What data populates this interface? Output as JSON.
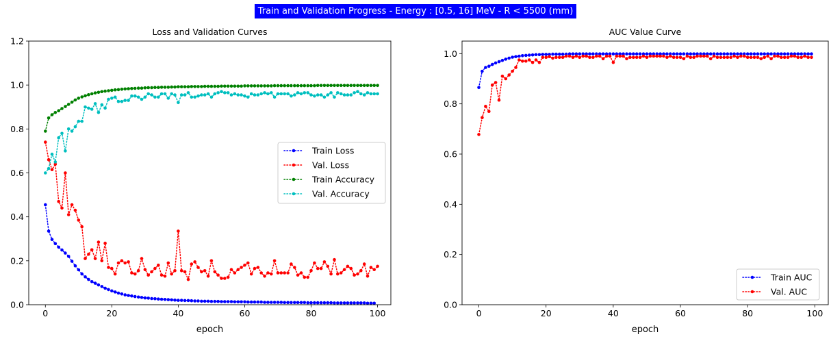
{
  "suptitle": "Train and Validation Progress - Energy : [0.5, 16] MeV - R < 5500 (mm)",
  "colors": {
    "train_loss": "#0000ff",
    "val_loss": "#ff0000",
    "train_acc": "#008000",
    "val_acc": "#00bfbf",
    "suptitle_bg": "#0000ff"
  },
  "chart_data": [
    {
      "type": "line",
      "title": "Loss and Validation Curves",
      "xlabel": "epoch",
      "ylabel": "",
      "xlim": [
        -5,
        104
      ],
      "ylim": [
        0.0,
        1.2
      ],
      "xticks": [
        0,
        20,
        40,
        60,
        80,
        100
      ],
      "yticks": [
        0.0,
        0.2,
        0.4,
        0.6,
        0.8,
        1.0,
        1.2
      ],
      "grid": false,
      "legend": "center-right",
      "x_start": 0,
      "series": [
        {
          "name": "Train Loss",
          "color": "#0000ff",
          "values": [
            0.455,
            0.335,
            0.297,
            0.278,
            0.262,
            0.249,
            0.235,
            0.22,
            0.198,
            0.177,
            0.159,
            0.14,
            0.127,
            0.115,
            0.105,
            0.098,
            0.09,
            0.083,
            0.075,
            0.069,
            0.063,
            0.058,
            0.053,
            0.049,
            0.045,
            0.042,
            0.04,
            0.037,
            0.035,
            0.033,
            0.031,
            0.03,
            0.028,
            0.027,
            0.026,
            0.025,
            0.024,
            0.023,
            0.022,
            0.021,
            0.02,
            0.02,
            0.019,
            0.019,
            0.018,
            0.017,
            0.017,
            0.016,
            0.016,
            0.016,
            0.015,
            0.015,
            0.015,
            0.014,
            0.014,
            0.014,
            0.014,
            0.013,
            0.013,
            0.013,
            0.013,
            0.012,
            0.012,
            0.012,
            0.012,
            0.012,
            0.011,
            0.011,
            0.011,
            0.011,
            0.011,
            0.011,
            0.01,
            0.01,
            0.01,
            0.01,
            0.01,
            0.01,
            0.01,
            0.009,
            0.009,
            0.009,
            0.009,
            0.009,
            0.009,
            0.009,
            0.009,
            0.008,
            0.008,
            0.008,
            0.008,
            0.008,
            0.008,
            0.008,
            0.008,
            0.008,
            0.008,
            0.007,
            0.007,
            0.007
          ]
        },
        {
          "name": "Val. Loss",
          "color": "#ff0000",
          "values": [
            0.74,
            0.66,
            0.615,
            0.64,
            0.47,
            0.44,
            0.6,
            0.41,
            0.455,
            0.43,
            0.385,
            0.355,
            0.21,
            0.23,
            0.25,
            0.21,
            0.285,
            0.2,
            0.28,
            0.17,
            0.165,
            0.14,
            0.19,
            0.2,
            0.19,
            0.195,
            0.145,
            0.14,
            0.155,
            0.21,
            0.16,
            0.135,
            0.15,
            0.165,
            0.18,
            0.135,
            0.13,
            0.19,
            0.14,
            0.155,
            0.335,
            0.155,
            0.15,
            0.115,
            0.185,
            0.195,
            0.17,
            0.15,
            0.155,
            0.13,
            0.2,
            0.15,
            0.135,
            0.12,
            0.12,
            0.125,
            0.16,
            0.145,
            0.16,
            0.17,
            0.18,
            0.19,
            0.14,
            0.165,
            0.17,
            0.145,
            0.13,
            0.145,
            0.14,
            0.2,
            0.145,
            0.145,
            0.145,
            0.145,
            0.185,
            0.17,
            0.135,
            0.145,
            0.125,
            0.125,
            0.155,
            0.19,
            0.165,
            0.165,
            0.195,
            0.175,
            0.14,
            0.205,
            0.14,
            0.145,
            0.16,
            0.175,
            0.165,
            0.135,
            0.14,
            0.155,
            0.185,
            0.13,
            0.17,
            0.16,
            0.175
          ]
        },
        {
          "name": "Train Accuracy",
          "color": "#008000",
          "values": [
            0.79,
            0.85,
            0.865,
            0.875,
            0.883,
            0.893,
            0.902,
            0.912,
            0.922,
            0.932,
            0.94,
            0.946,
            0.951,
            0.956,
            0.96,
            0.964,
            0.967,
            0.97,
            0.972,
            0.974,
            0.976,
            0.978,
            0.979,
            0.981,
            0.982,
            0.983,
            0.984,
            0.985,
            0.986,
            0.986,
            0.987,
            0.988,
            0.988,
            0.989,
            0.989,
            0.99,
            0.99,
            0.99,
            0.991,
            0.991,
            0.992,
            0.992,
            0.992,
            0.992,
            0.993,
            0.993,
            0.993,
            0.993,
            0.994,
            0.994,
            0.994,
            0.994,
            0.994,
            0.995,
            0.995,
            0.995,
            0.995,
            0.995,
            0.995,
            0.995,
            0.996,
            0.996,
            0.996,
            0.996,
            0.996,
            0.996,
            0.996,
            0.996,
            0.996,
            0.997,
            0.997,
            0.997,
            0.997,
            0.997,
            0.997,
            0.997,
            0.997,
            0.997,
            0.997,
            0.997,
            0.997,
            0.997,
            0.998,
            0.998,
            0.998,
            0.998,
            0.998,
            0.998,
            0.998,
            0.998,
            0.998,
            0.998,
            0.998,
            0.998,
            0.998,
            0.998,
            0.998,
            0.998,
            0.998,
            0.998,
            0.998
          ]
        },
        {
          "name": "Val. Accuracy",
          "color": "#00bfbf",
          "values": [
            0.6,
            0.62,
            0.685,
            0.65,
            0.76,
            0.78,
            0.7,
            0.8,
            0.79,
            0.81,
            0.835,
            0.835,
            0.9,
            0.895,
            0.89,
            0.915,
            0.875,
            0.91,
            0.895,
            0.935,
            0.94,
            0.945,
            0.925,
            0.925,
            0.93,
            0.93,
            0.95,
            0.95,
            0.945,
            0.935,
            0.945,
            0.96,
            0.955,
            0.945,
            0.945,
            0.96,
            0.96,
            0.94,
            0.96,
            0.955,
            0.92,
            0.955,
            0.955,
            0.965,
            0.945,
            0.945,
            0.95,
            0.955,
            0.955,
            0.96,
            0.945,
            0.96,
            0.965,
            0.97,
            0.965,
            0.965,
            0.955,
            0.96,
            0.955,
            0.955,
            0.95,
            0.945,
            0.96,
            0.955,
            0.955,
            0.96,
            0.965,
            0.96,
            0.965,
            0.945,
            0.96,
            0.96,
            0.96,
            0.96,
            0.95,
            0.955,
            0.965,
            0.96,
            0.965,
            0.965,
            0.955,
            0.95,
            0.955,
            0.955,
            0.945,
            0.955,
            0.965,
            0.945,
            0.965,
            0.96,
            0.955,
            0.955,
            0.955,
            0.965,
            0.97,
            0.96,
            0.955,
            0.965,
            0.96,
            0.96,
            0.96
          ]
        }
      ]
    },
    {
      "type": "line",
      "title": "AUC Value Curve",
      "xlabel": "epoch",
      "ylabel": "",
      "xlim": [
        -5,
        104
      ],
      "ylim": [
        0.0,
        1.05
      ],
      "xticks": [
        0,
        20,
        40,
        60,
        80,
        100
      ],
      "yticks": [
        0.0,
        0.2,
        0.4,
        0.6,
        0.8,
        1.0
      ],
      "grid": false,
      "legend": "lower-right",
      "x_start": 0,
      "series": [
        {
          "name": "Train AUC",
          "color": "#0000ff",
          "values": [
            0.865,
            0.93,
            0.945,
            0.95,
            0.957,
            0.963,
            0.968,
            0.973,
            0.978,
            0.982,
            0.986,
            0.988,
            0.99,
            0.992,
            0.993,
            0.994,
            0.995,
            0.996,
            0.996,
            0.997,
            0.997,
            0.997,
            0.998,
            0.998,
            0.998,
            0.998,
            0.998,
            0.999,
            0.999,
            0.999,
            0.999,
            0.999,
            0.999,
            0.999,
            0.999,
            0.999,
            0.999,
            0.999,
            0.999,
            0.999,
            0.999,
            0.999,
            0.999,
            0.999,
            0.999,
            0.999,
            0.999,
            0.999,
            0.999,
            0.999,
            0.999,
            0.999,
            0.999,
            0.999,
            0.999,
            0.999,
            0.999,
            0.999,
            0.999,
            0.999,
            0.999,
            0.999,
            0.999,
            0.999,
            0.999,
            0.999,
            0.999,
            0.999,
            0.999,
            0.999,
            0.999,
            0.999,
            0.999,
            0.999,
            0.999,
            0.999,
            0.999,
            0.999,
            0.999,
            0.999,
            0.999,
            0.999,
            0.999,
            0.999,
            0.999,
            0.999,
            0.999,
            0.999,
            0.999,
            0.999,
            0.999,
            0.999,
            0.999,
            0.999,
            0.999,
            0.999,
            0.999,
            0.999,
            0.999,
            0.999
          ]
        },
        {
          "name": "Val. AUC",
          "color": "#ff0000",
          "values": [
            0.678,
            0.745,
            0.79,
            0.77,
            0.875,
            0.885,
            0.815,
            0.91,
            0.9,
            0.915,
            0.93,
            0.945,
            0.975,
            0.97,
            0.97,
            0.975,
            0.965,
            0.975,
            0.965,
            0.985,
            0.985,
            0.988,
            0.982,
            0.985,
            0.985,
            0.985,
            0.99,
            0.99,
            0.985,
            0.99,
            0.985,
            0.99,
            0.99,
            0.985,
            0.985,
            0.99,
            0.99,
            0.98,
            0.99,
            0.99,
            0.965,
            0.99,
            0.99,
            0.99,
            0.98,
            0.985,
            0.985,
            0.985,
            0.985,
            0.99,
            0.985,
            0.99,
            0.99,
            0.99,
            0.99,
            0.99,
            0.985,
            0.99,
            0.985,
            0.985,
            0.985,
            0.98,
            0.99,
            0.985,
            0.985,
            0.99,
            0.99,
            0.99,
            0.99,
            0.98,
            0.99,
            0.985,
            0.985,
            0.985,
            0.985,
            0.985,
            0.99,
            0.985,
            0.99,
            0.99,
            0.985,
            0.985,
            0.985,
            0.985,
            0.98,
            0.985,
            0.99,
            0.98,
            0.99,
            0.99,
            0.985,
            0.985,
            0.985,
            0.99,
            0.99,
            0.985,
            0.985,
            0.99,
            0.985,
            0.985
          ]
        }
      ]
    }
  ]
}
